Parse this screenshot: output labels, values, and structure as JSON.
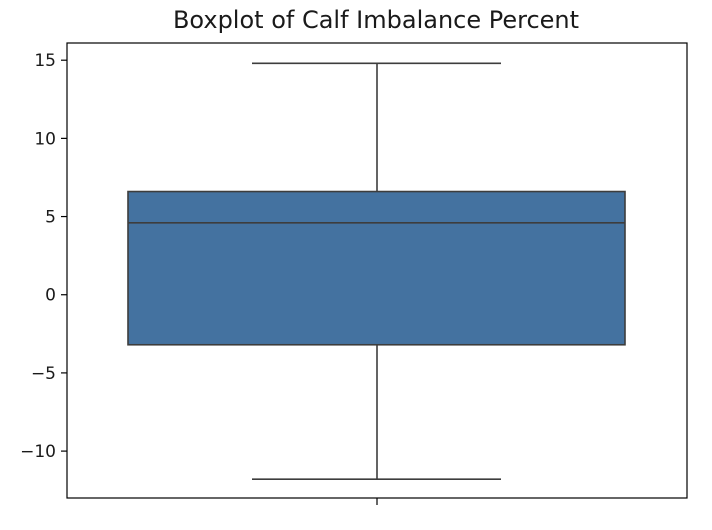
{
  "chart_data": {
    "type": "boxplot",
    "title": "Boxplot of Calf Imbalance Percent",
    "xlabel": "",
    "ylabel": "",
    "ylim": [
      -13,
      16.1
    ],
    "yticks": [
      -10,
      -5,
      0,
      5,
      10,
      15
    ],
    "ytick_labels": [
      "−10",
      "−5",
      "0",
      "5",
      "10",
      "15"
    ],
    "grid": false,
    "box": {
      "whisker_low": -11.8,
      "q1": -3.2,
      "median": 4.6,
      "q3": 6.6,
      "whisker_high": 14.8
    },
    "box_color": "#4472a0",
    "line_color": "#3d3d3d"
  }
}
